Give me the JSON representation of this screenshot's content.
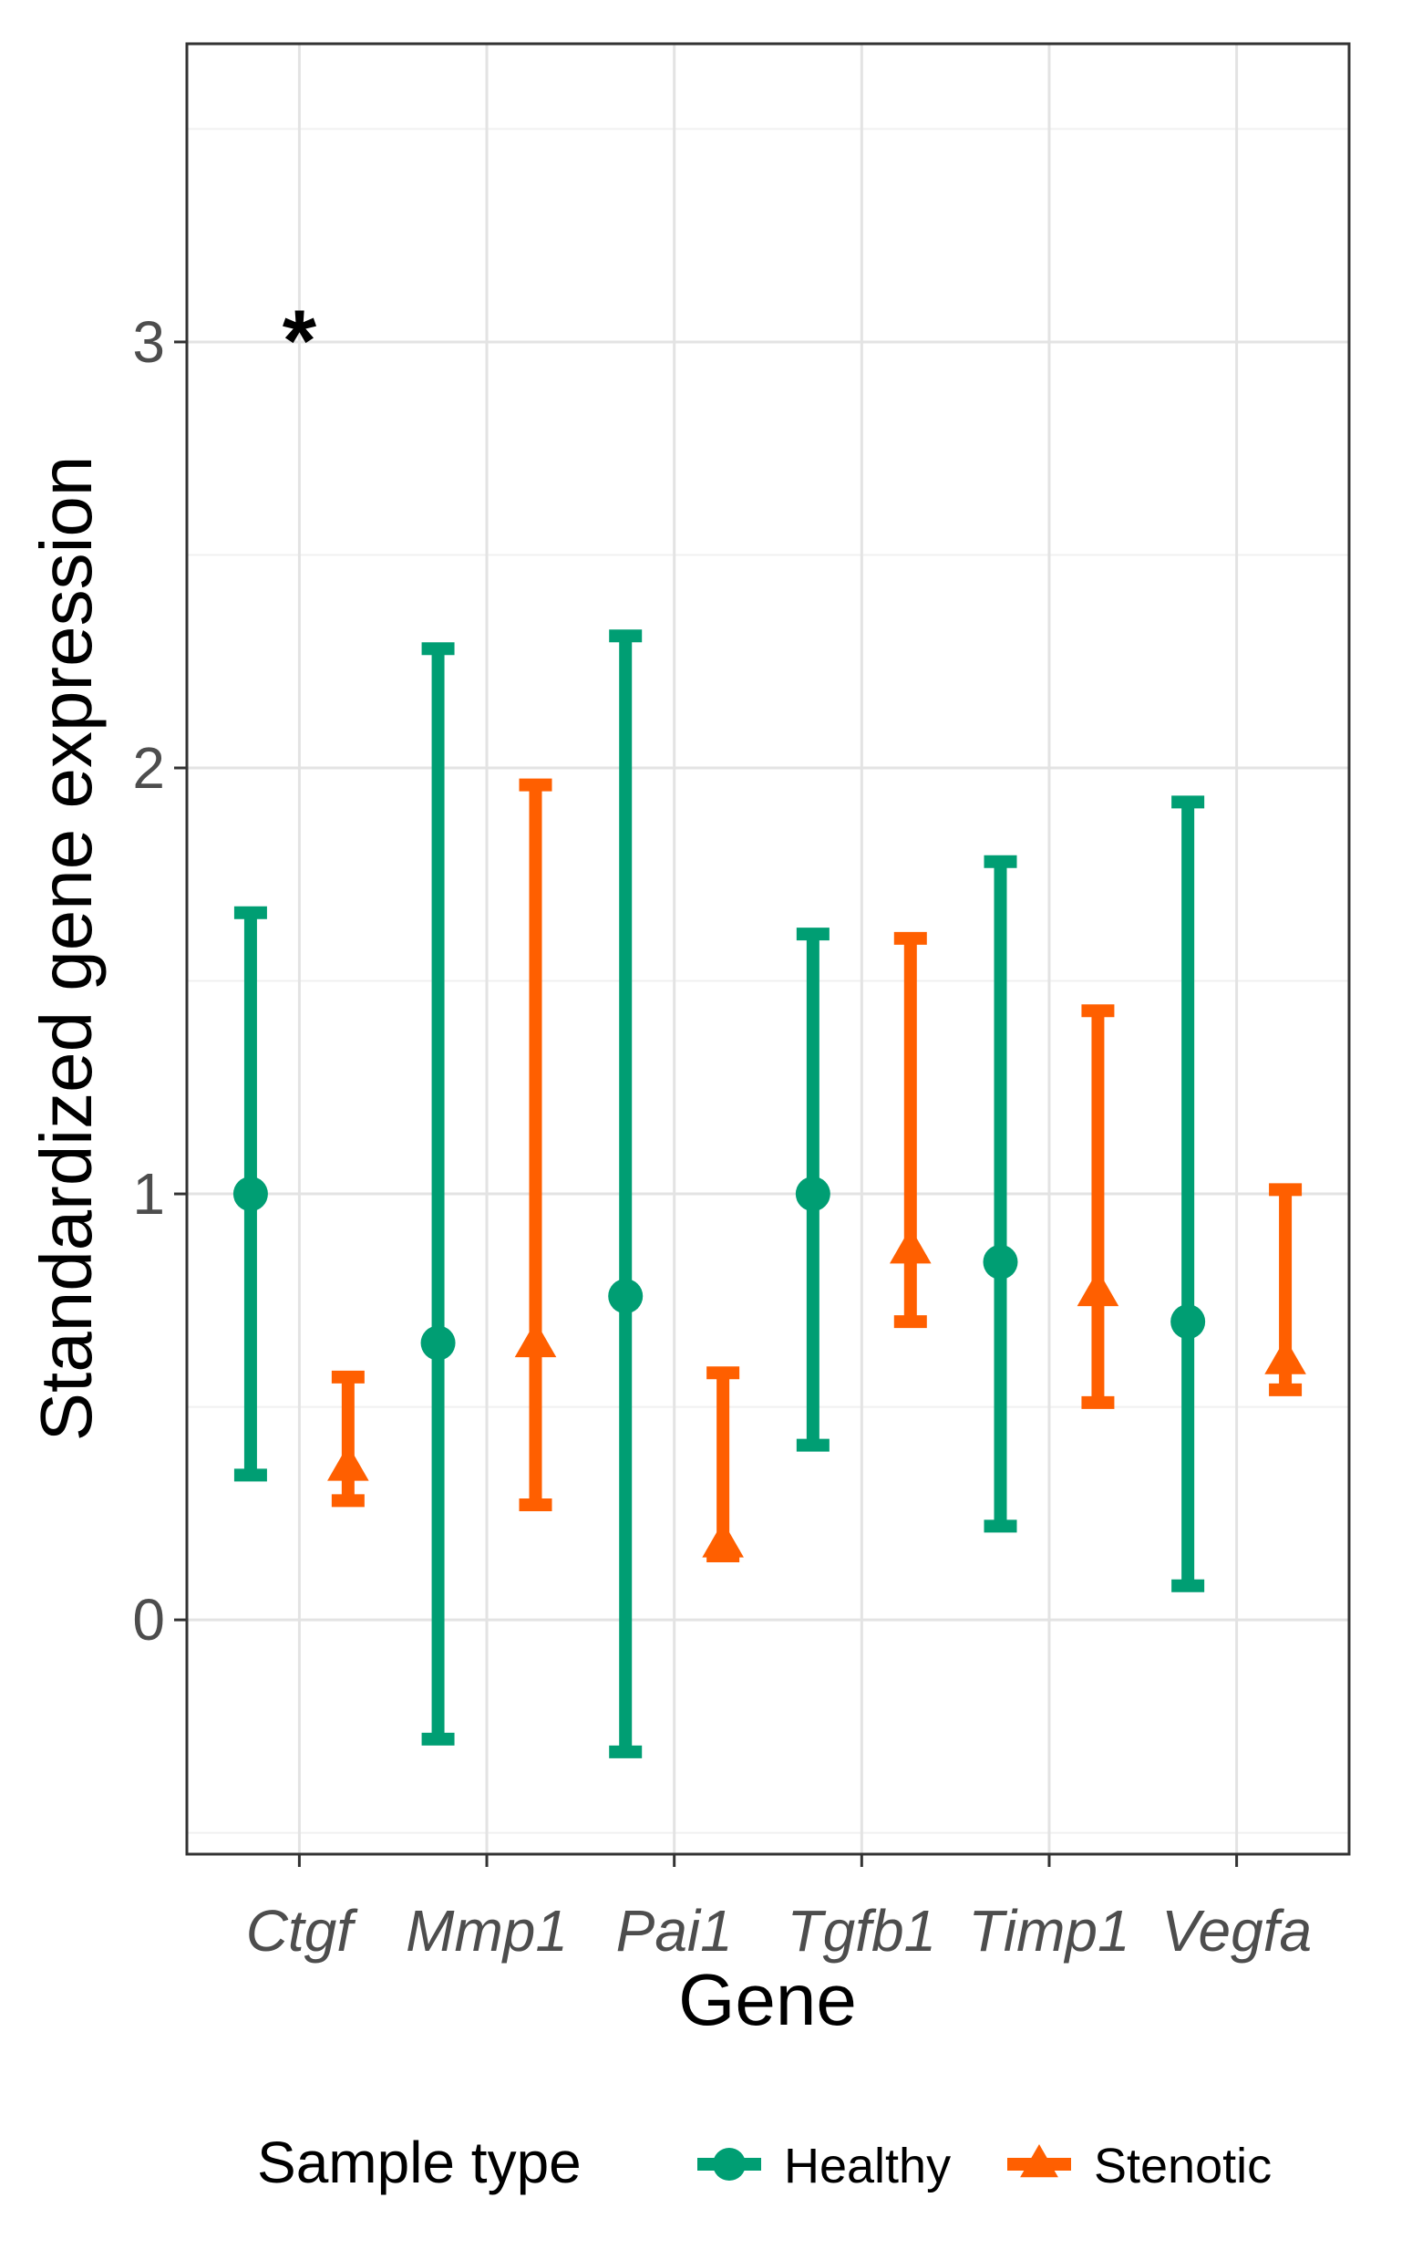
{
  "chart_data": {
    "type": "errorbar",
    "xlabel": "Gene",
    "ylabel": "Standardized gene expression",
    "categories": [
      "Ctgf",
      "Mmp1",
      "Pai1",
      "Tgfb1",
      "Timp1",
      "Vegfa"
    ],
    "ylim": [
      -0.55,
      3.7
    ],
    "yticks": [
      0,
      1,
      2,
      3
    ],
    "grid": true,
    "legend": {
      "title": "Sample type",
      "position": "bottom",
      "entries": [
        "Healthy",
        "Stenotic"
      ]
    },
    "series": [
      {
        "name": "Healthy",
        "color": "#009E73",
        "marker": "circle",
        "mean": [
          1.0,
          0.65,
          0.76,
          1.0,
          0.84,
          0.7
        ],
        "lower": [
          0.34,
          -0.28,
          -0.31,
          0.41,
          0.22,
          0.08
        ],
        "upper": [
          1.66,
          2.28,
          2.31,
          1.61,
          1.78,
          1.92
        ]
      },
      {
        "name": "Stenotic",
        "color": "#FF5F00",
        "marker": "triangle",
        "mean": [
          0.36,
          0.65,
          0.18,
          0.87,
          0.77,
          0.61
        ],
        "lower": [
          0.28,
          0.27,
          0.15,
          0.7,
          0.51,
          0.54
        ],
        "upper": [
          0.57,
          1.96,
          0.58,
          1.6,
          1.43,
          1.01
        ]
      }
    ],
    "annotations": [
      {
        "text": "*",
        "category": "Ctgf",
        "y": 3.05
      }
    ]
  }
}
